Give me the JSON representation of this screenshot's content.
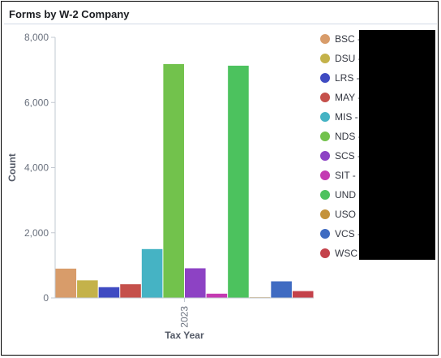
{
  "panel": {
    "title": "Forms by W-2 Company"
  },
  "chart_data": {
    "type": "bar",
    "title": "Forms by W-2 Company",
    "xlabel": "Tax Year",
    "ylabel": "Count",
    "categories": [
      "2023"
    ],
    "ylim": [
      0,
      8000
    ],
    "yticks": [
      "0",
      "2,000",
      "4,000",
      "6,000",
      "8,000"
    ],
    "grid": false,
    "legend_position": "right",
    "series": [
      {
        "name": "BSC",
        "values": [
          900
        ],
        "color": "#d89c6a"
      },
      {
        "name": "DSU",
        "values": [
          540
        ],
        "color": "#c4b24a"
      },
      {
        "name": "LRS",
        "values": [
          330
        ],
        "color": "#3f4bc2"
      },
      {
        "name": "MAY",
        "values": [
          420
        ],
        "color": "#c5504b"
      },
      {
        "name": "MIS",
        "values": [
          1500
        ],
        "color": "#45b3c4"
      },
      {
        "name": "NDS",
        "values": [
          7180
        ],
        "color": "#72c24c"
      },
      {
        "name": "SCS",
        "values": [
          910
        ],
        "color": "#8d42c4"
      },
      {
        "name": "SIT",
        "values": [
          130
        ],
        "color": "#c43ab2"
      },
      {
        "name": "UND",
        "values": [
          7130
        ],
        "color": "#4cc25e"
      },
      {
        "name": "USO",
        "values": [
          20
        ],
        "color": "#c4923a"
      },
      {
        "name": "VCS",
        "values": [
          510
        ],
        "color": "#3f6bc2"
      },
      {
        "name": "WSC",
        "values": [
          210
        ],
        "color": "#c4424b"
      }
    ]
  }
}
